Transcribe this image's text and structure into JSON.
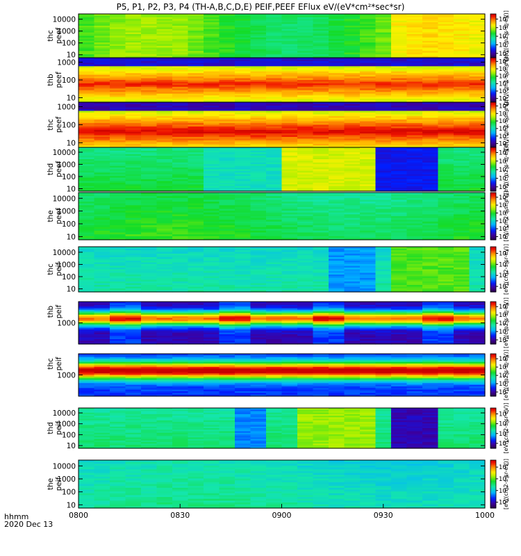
{
  "chart_data": {
    "type": "heatmap",
    "title": "P5, P1, P2, P3, P4 (TH-A,B,C,D,E) PEIF,PEEF EFlux eV/(eV*cm²*sec*sr)",
    "x_ticks": [
      "0800",
      "0830",
      "0900",
      "0930",
      "1000"
    ],
    "x_range_hhmm": [
      "0800",
      "1000"
    ],
    "x_corner_label": "hhmm",
    "date_label": "2020 Dec 13",
    "colorbar_label": "[eV/(cm2-s-sr-eV)]",
    "panels": [
      {
        "probe": "thc",
        "species": "peef",
        "ylabel": [
          "thc",
          "peef"
        ],
        "yticks": [
          "10",
          "100",
          "1000",
          "10000"
        ],
        "ylog": [
          0.75,
          4.45
        ],
        "cbar_ticks": [
          "10^4",
          "10^5",
          "10^6",
          "10^7",
          "10^8"
        ],
        "cbar_log": [
          3.5,
          8.6
        ],
        "profile": "electronA"
      },
      {
        "probe": "thb",
        "species": "peef",
        "ylabel": [
          "thb",
          "peef"
        ],
        "yticks": [
          "10",
          "100",
          "1000"
        ],
        "ylog": [
          0.75,
          3.25
        ],
        "cbar_ticks": [
          "10^3",
          "10^4",
          "10^5",
          "10^6",
          "10^7",
          "10^8"
        ],
        "cbar_log": [
          2.5,
          8.5
        ],
        "profile": "electronB"
      },
      {
        "probe": "thc",
        "species": "peef",
        "ylabel": [
          "thc",
          "peef"
        ],
        "yticks": [
          "10",
          "100",
          "1000"
        ],
        "ylog": [
          0.75,
          3.25
        ],
        "cbar_ticks": [
          "10^3",
          "10^4",
          "10^5",
          "10^6",
          "10^7",
          "10^8"
        ],
        "cbar_log": [
          2.5,
          8.5
        ],
        "profile": "electronC"
      },
      {
        "probe": "thd",
        "species": "peef",
        "ylabel": [
          "thd",
          "peef"
        ],
        "yticks": [
          "10",
          "100",
          "1000",
          "10000"
        ],
        "ylog": [
          0.8,
          4.4
        ],
        "cbar_ticks": [
          "10^4",
          "10^5",
          "10^6",
          "10^7",
          "10^8"
        ],
        "cbar_log": [
          3.5,
          8.6
        ],
        "profile": "electronD"
      },
      {
        "probe": "the",
        "species": "peef",
        "ylabel": [
          "the",
          "peef"
        ],
        "yticks": [
          "10",
          "100",
          "1000",
          "10000"
        ],
        "ylog": [
          0.75,
          4.45
        ],
        "cbar_ticks": [
          "10^3",
          "10^4",
          "10^5",
          "10^6",
          "10^7",
          "10^8"
        ],
        "cbar_log": [
          2.6,
          8.6
        ],
        "profile": "electronE"
      },
      {
        "probe": "thc",
        "species": "peif",
        "ylabel": [
          "thc",
          "peif"
        ],
        "yticks": [
          "10",
          "100",
          "1000",
          "10000"
        ],
        "ylog": [
          0.75,
          4.45
        ],
        "cbar_ticks": [
          "10^4",
          "10^5",
          "10^6",
          "10^7"
        ],
        "cbar_log": [
          3.5,
          7.6
        ],
        "profile": "ionA"
      },
      {
        "probe": "thb",
        "species": "peif",
        "ylabel": [
          "thb",
          "peif"
        ],
        "yticks": [
          "1000"
        ],
        "ylog": [
          1.9,
          4.1
        ],
        "cbar_ticks": [
          "10^4",
          "10^5",
          "10^6",
          "10^7",
          "10^8"
        ],
        "cbar_log": [
          3.5,
          8.6
        ],
        "profile": "ionB"
      },
      {
        "probe": "thc",
        "species": "peif",
        "ylabel": [
          "thc",
          "peif"
        ],
        "yticks": [
          "1000"
        ],
        "ylog": [
          1.9,
          4.1
        ],
        "cbar_ticks": [
          "10^4",
          "10^5",
          "10^6",
          "10^7",
          "10^8"
        ],
        "cbar_log": [
          3.5,
          8.6
        ],
        "profile": "ionC"
      },
      {
        "probe": "thd",
        "species": "peif",
        "ylabel": [
          "thd",
          "peif"
        ],
        "yticks": [
          "10",
          "100",
          "1000",
          "10000"
        ],
        "ylog": [
          0.75,
          4.45
        ],
        "cbar_ticks": [
          "10^4",
          "10^5",
          "10^6",
          "10^7"
        ],
        "cbar_log": [
          3.5,
          7.6
        ],
        "profile": "ionD"
      },
      {
        "probe": "the",
        "species": "peif",
        "ylabel": [
          "the",
          "peif"
        ],
        "yticks": [
          "10",
          "100",
          "1000",
          "10000"
        ],
        "ylog": [
          0.75,
          4.45
        ],
        "cbar_ticks": [
          "10^4",
          "10^5",
          "10^6",
          "10^7"
        ],
        "cbar_log": [
          3.5,
          7.6
        ],
        "profile": "ionE"
      }
    ]
  }
}
